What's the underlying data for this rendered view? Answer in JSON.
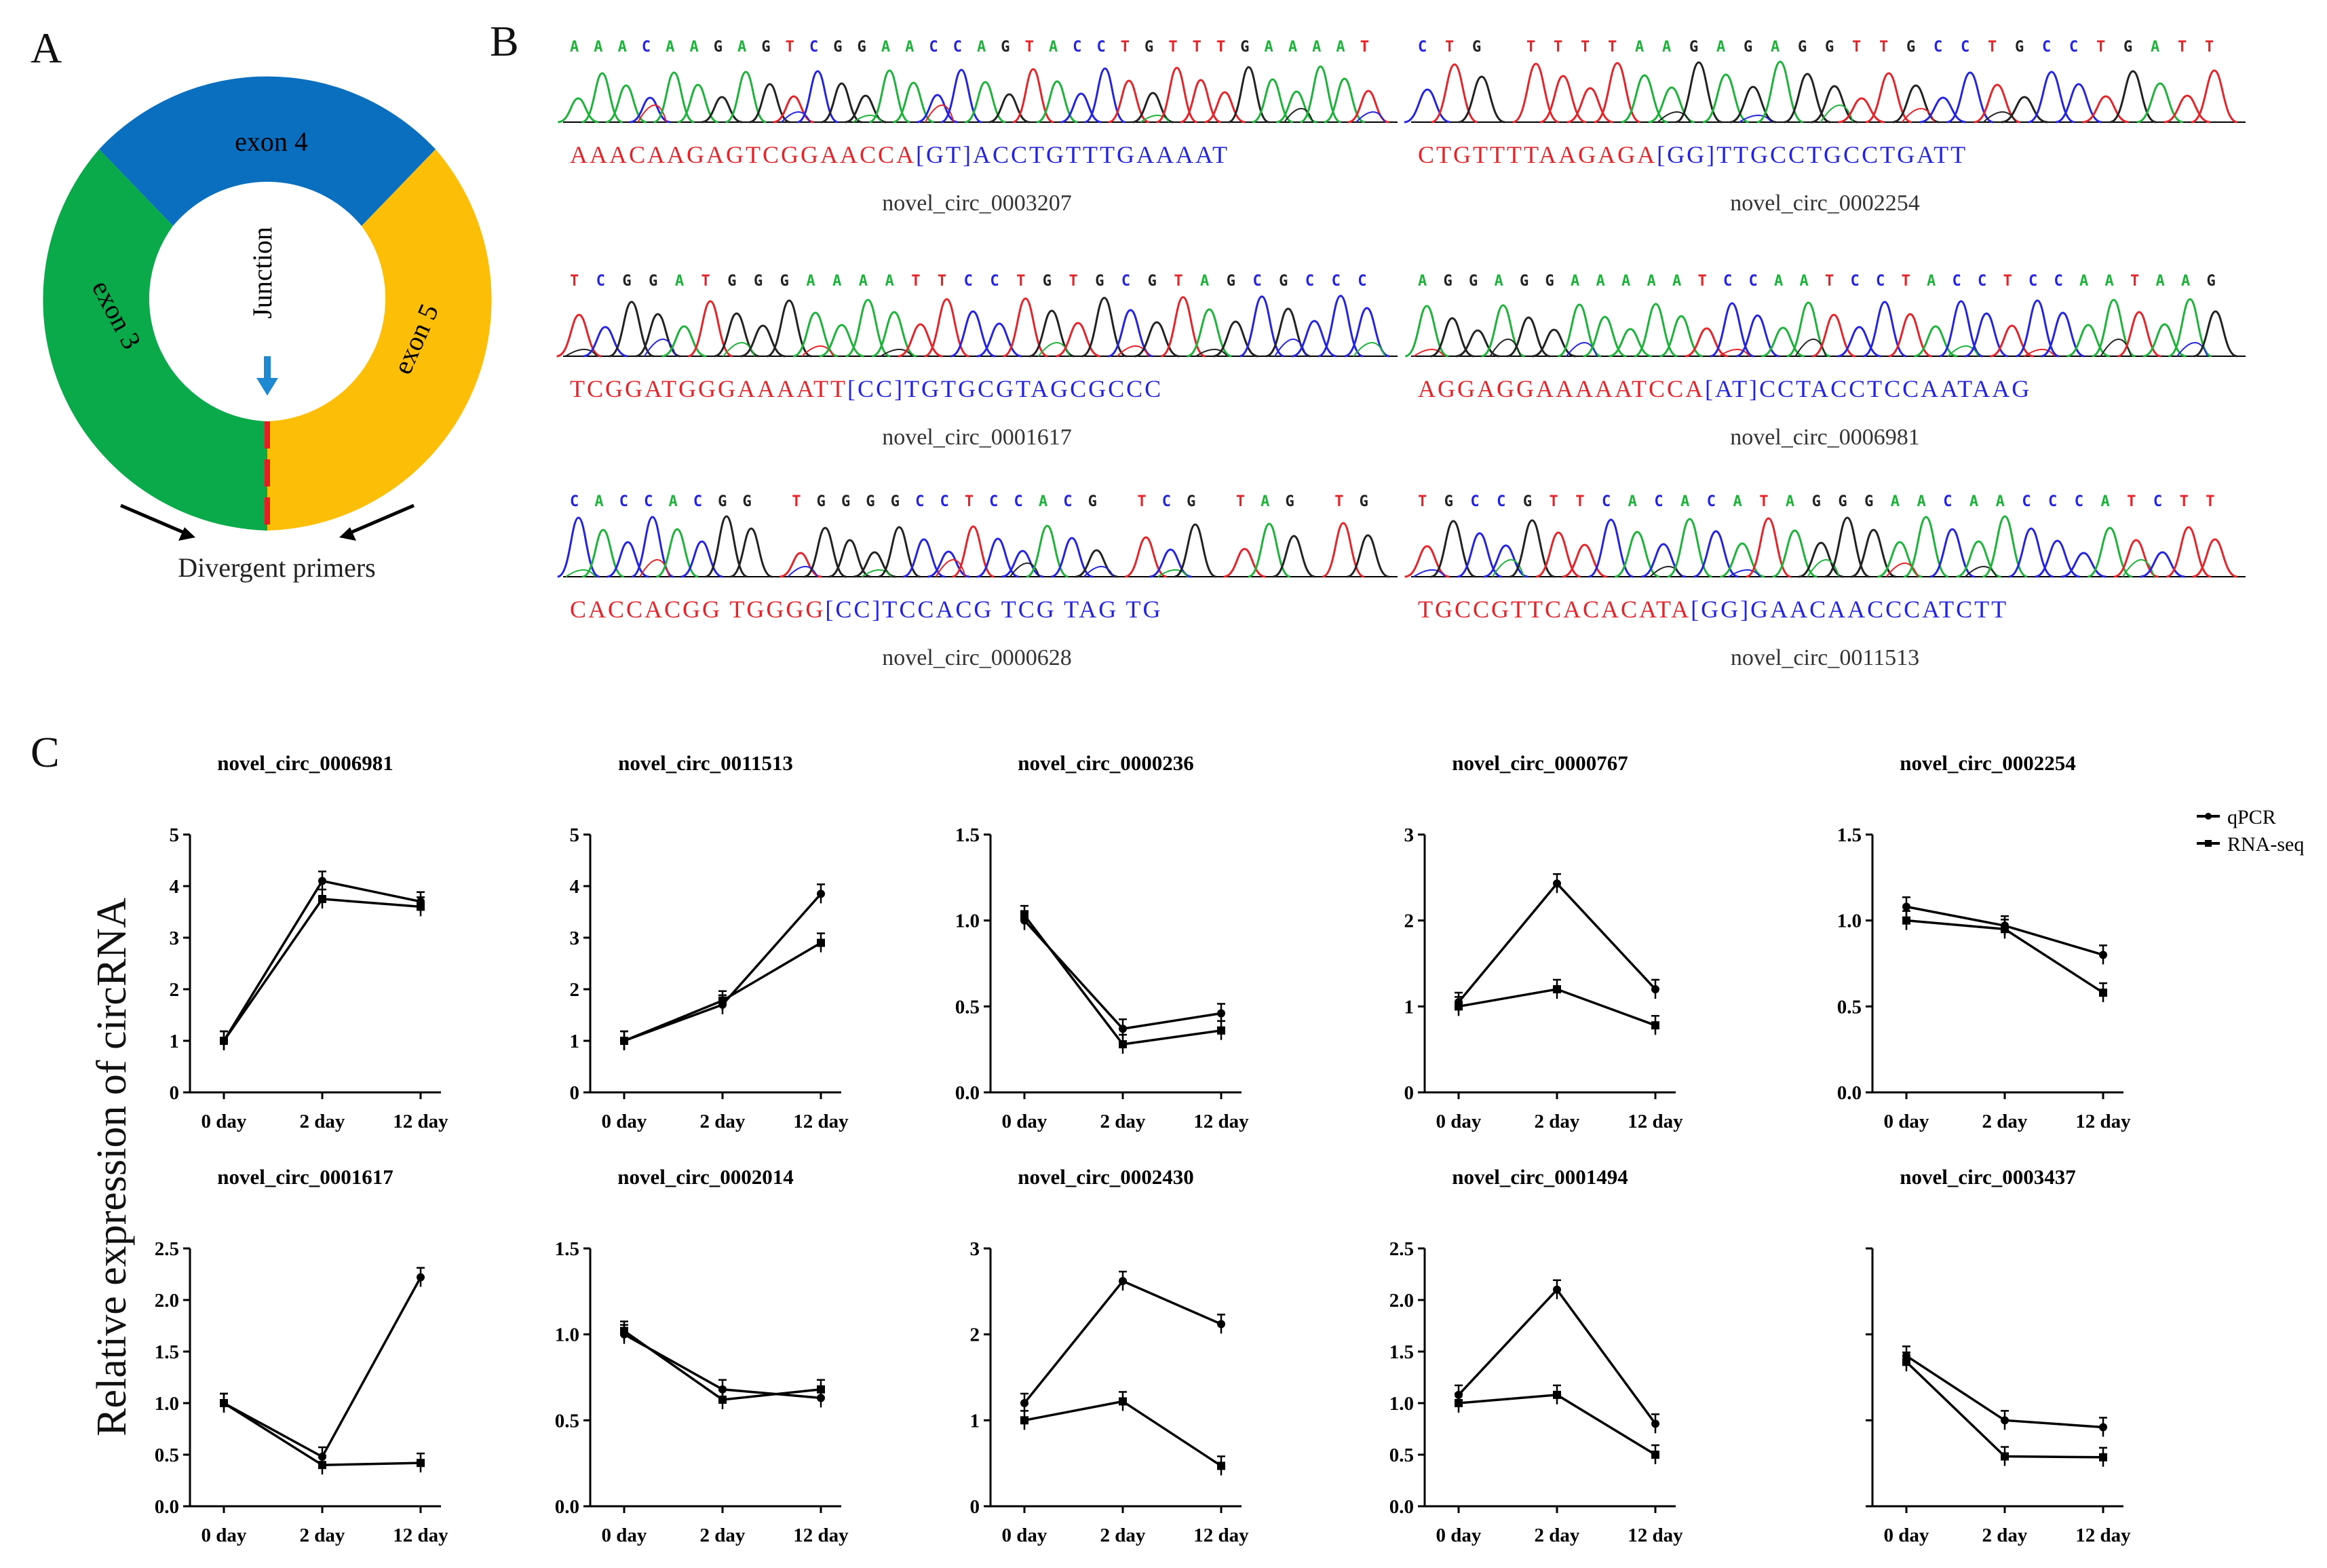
{
  "panels": {
    "a": "A",
    "b": "B",
    "c": "C"
  },
  "panel_a": {
    "exons": [
      "exon 4",
      "exon 3",
      "exon 5"
    ],
    "junction_label": "Junction",
    "primers_label": "Divergent primers",
    "colors": {
      "exon4": "#0B6FC0",
      "exon3": "#0AAA4B",
      "exon5": "#FCBE07",
      "junction": "#E31E24",
      "arrow": "#1E88D0"
    }
  },
  "panel_b": {
    "traces": [
      {
        "name": "novel_circ_0003207",
        "top": "AAACAAGAGTCGGAACCAGTACCTGTTTGAAAAT",
        "bottom": [
          {
            "t": "AAACAAGAGTCGGAACCA",
            "c": "red"
          },
          {
            "t": "[GT]",
            "c": "blue"
          },
          {
            "t": "ACCTGTTTGAAAAT",
            "c": "blue"
          }
        ]
      },
      {
        "name": "novel_circ_0002254",
        "top": "CTG TTTTAAGAGAGGTTGCCTGCCTGATT",
        "bottom": [
          {
            "t": "CTGTTTTAAGAGA",
            "c": "red"
          },
          {
            "t": "[GG]",
            "c": "blue"
          },
          {
            "t": "TTGCCTGCCTGATT",
            "c": "blue"
          }
        ]
      },
      {
        "name": "novel_circ_0001617",
        "top": "TCGGATGGGAAAATTCCTGTGCGTAGCGCCC",
        "bottom": [
          {
            "t": "TCGGATGGGAAAATT",
            "c": "red"
          },
          {
            "t": "[CC]",
            "c": "blue"
          },
          {
            "t": "TGTGCGTAGCGCCC",
            "c": "blue"
          }
        ]
      },
      {
        "name": "novel_circ_0006981",
        "top": "AGGAGGAAAAATCCAATCCTACCTCCAATAAG",
        "bottom": [
          {
            "t": "AGGAGGAAAAATCCA",
            "c": "red"
          },
          {
            "t": "[AT]",
            "c": "blue"
          },
          {
            "t": "CCTACCTCCAATAAG",
            "c": "blue"
          }
        ]
      },
      {
        "name": "novel_circ_0000628",
        "top": "CACCACGG TGGGGCCTCCACG TCG TAG TG",
        "bottom": [
          {
            "t": "CACCACGG TGGGG",
            "c": "red"
          },
          {
            "t": "[CC]",
            "c": "blue"
          },
          {
            "t": "TCCACG TCG TAG TG",
            "c": "blue"
          }
        ]
      },
      {
        "name": "novel_circ_0011513",
        "top": "TGCCGTTCACACATAGGGAACAACCCATCTT",
        "bottom": [
          {
            "t": "TGCCGTTCACACATA",
            "c": "red"
          },
          {
            "t": "[GG]",
            "c": "blue"
          },
          {
            "t": "GAACAACCCATCTT",
            "c": "blue"
          }
        ]
      }
    ],
    "colors": {
      "A": "#1DB33A",
      "C": "#2424E0",
      "G": "#222222",
      "T": "#E5242A",
      "red": "#E5242A",
      "blue": "#2424E0"
    }
  },
  "panel_c": {
    "ylabel": "Relative expression of  circRNA",
    "legend": [
      "qPCR",
      "RNA-seq"
    ]
  },
  "chart_data": [
    {
      "type": "line",
      "title": "novel_circ_0006981",
      "categories": [
        "0 day",
        "2 day",
        "12 day"
      ],
      "ylim": [
        0,
        5
      ],
      "yticks": [
        "0",
        "1",
        "2",
        "3",
        "4",
        "5"
      ],
      "series": [
        {
          "name": "qPCR",
          "values": [
            1.0,
            4.1,
            3.7
          ]
        },
        {
          "name": "RNA-seq",
          "values": [
            1.0,
            3.75,
            3.6
          ]
        }
      ]
    },
    {
      "type": "line",
      "title": "novel_circ_0011513",
      "categories": [
        "0 day",
        "2 day",
        "12 day"
      ],
      "ylim": [
        0,
        5
      ],
      "yticks": [
        "0",
        "1",
        "2",
        "3",
        "4",
        "5"
      ],
      "series": [
        {
          "name": "qPCR",
          "values": [
            1.0,
            1.7,
            3.85
          ]
        },
        {
          "name": "RNA-seq",
          "values": [
            1.0,
            1.78,
            2.9
          ]
        }
      ]
    },
    {
      "type": "line",
      "title": "novel_circ_0000236",
      "categories": [
        "0 day",
        "2 day",
        "12 day"
      ],
      "ylim": [
        0,
        1.5
      ],
      "yticks": [
        "0.0",
        "0.5",
        "1.0",
        "1.5"
      ],
      "series": [
        {
          "name": "qPCR",
          "values": [
            1.0,
            0.37,
            0.46
          ]
        },
        {
          "name": "RNA-seq",
          "values": [
            1.03,
            0.28,
            0.36
          ]
        }
      ]
    },
    {
      "type": "line",
      "title": "novel_circ_0000767",
      "categories": [
        "0 day",
        "2 day",
        "12 day"
      ],
      "ylim": [
        0,
        3
      ],
      "yticks": [
        "0",
        "1",
        "2",
        "3"
      ],
      "series": [
        {
          "name": "qPCR",
          "values": [
            1.05,
            2.43,
            1.2
          ]
        },
        {
          "name": "RNA-seq",
          "values": [
            1.0,
            1.2,
            0.78
          ]
        }
      ]
    },
    {
      "type": "line",
      "title": "novel_circ_0002254",
      "categories": [
        "0 day",
        "2 day",
        "12 day"
      ],
      "ylim": [
        0,
        1.5
      ],
      "yticks": [
        "0.0",
        "0.5",
        "1.0",
        "1.5"
      ],
      "series": [
        {
          "name": "qPCR",
          "values": [
            1.08,
            0.97,
            0.8
          ]
        },
        {
          "name": "RNA-seq",
          "values": [
            1.0,
            0.95,
            0.58
          ]
        }
      ]
    },
    {
      "type": "line",
      "title": "novel_circ_0001617",
      "categories": [
        "0 day",
        "2 day",
        "12 day"
      ],
      "ylim": [
        0,
        2.5
      ],
      "yticks": [
        "0.0",
        "0.5",
        "1.0",
        "1.5",
        "2.0",
        "2.5"
      ],
      "series": [
        {
          "name": "qPCR",
          "values": [
            1.0,
            0.48,
            2.22
          ]
        },
        {
          "name": "RNA-seq",
          "values": [
            1.0,
            0.4,
            0.42
          ]
        }
      ]
    },
    {
      "type": "line",
      "title": "novel_circ_0002014",
      "categories": [
        "0 day",
        "2 day",
        "12 day"
      ],
      "ylim": [
        0,
        1.5
      ],
      "yticks": [
        "0.0",
        "0.5",
        "1.0",
        "1.5"
      ],
      "series": [
        {
          "name": "qPCR",
          "values": [
            1.0,
            0.68,
            0.63
          ]
        },
        {
          "name": "RNA-seq",
          "values": [
            1.02,
            0.62,
            0.68
          ]
        }
      ]
    },
    {
      "type": "line",
      "title": "novel_circ_0002430",
      "categories": [
        "0 day",
        "2 day",
        "12 day"
      ],
      "ylim": [
        0,
        3
      ],
      "yticks": [
        "0",
        "1",
        "2",
        "3"
      ],
      "series": [
        {
          "name": "qPCR",
          "values": [
            1.2,
            2.62,
            2.12
          ]
        },
        {
          "name": "RNA-seq",
          "values": [
            1.0,
            1.22,
            0.47
          ]
        }
      ]
    },
    {
      "type": "line",
      "title": "novel_circ_0001494",
      "categories": [
        "0 day",
        "2 day",
        "12 day"
      ],
      "ylim": [
        0,
        2.5
      ],
      "yticks": [
        "0.0",
        "0.5",
        "1.0",
        "1.5",
        "2.0",
        "2.5"
      ],
      "series": [
        {
          "name": "qPCR",
          "values": [
            1.08,
            2.1,
            0.8
          ]
        },
        {
          "name": "RNA-seq",
          "values": [
            1.0,
            1.08,
            0.5
          ]
        }
      ]
    },
    {
      "type": "line",
      "title": "novel_circ_0003437",
      "categories": [
        "0 day",
        "2 day",
        "12 day"
      ],
      "ylim": [
        0,
        3
      ],
      "yticks": [],
      "series": [
        {
          "name": "qPCR",
          "values": [
            1.75,
            1.0,
            0.92
          ]
        },
        {
          "name": "RNA-seq",
          "values": [
            1.68,
            0.58,
            0.57
          ]
        }
      ]
    }
  ]
}
